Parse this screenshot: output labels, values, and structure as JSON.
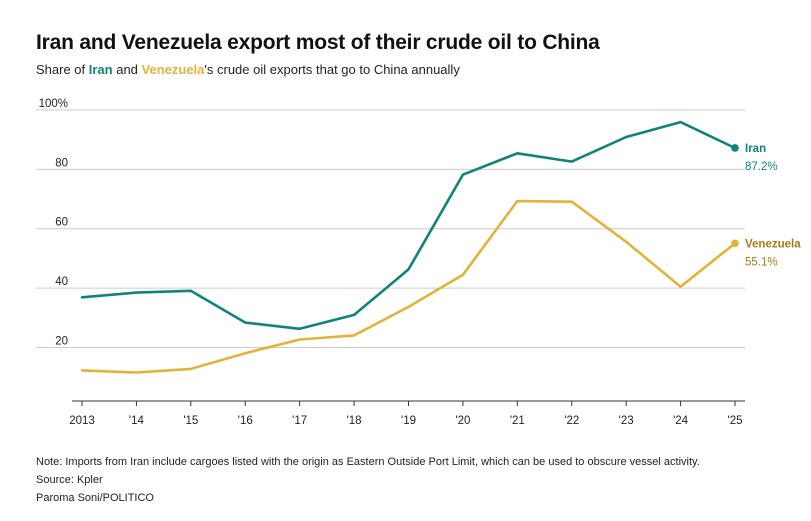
{
  "header": {
    "title": "Iran and Venezuela export most of their crude oil to China",
    "subtitle_prefix": "Share of ",
    "subtitle_iran": "Iran",
    "subtitle_and": " and ",
    "subtitle_venezuela": "Venezuela",
    "subtitle_suffix": "'s crude oil exports that go to China annually"
  },
  "footer": {
    "note": "Note: Imports from Iran include cargoes listed with the origin as Eastern Outside Port Limit, which can be used to obscure vessel activity.",
    "source": "Source: Kpler",
    "credit": "Paroma Soni/POLITICO"
  },
  "colors": {
    "iran": "#0f8478",
    "venezuela": "#e2b33a",
    "venezuela_label": "#a37d14",
    "grid": "#cccccc",
    "axis": "#333333"
  },
  "chart_data": {
    "type": "line",
    "title": "Iran and Venezuela export most of their crude oil to China",
    "subtitle": "Share of Iran and Venezuela's crude oil exports that go to China annually",
    "xlabel": "",
    "ylabel": "",
    "x": [
      2013,
      2014,
      2015,
      2016,
      2017,
      2018,
      2019,
      2020,
      2021,
      2022,
      2023,
      2024,
      2025
    ],
    "x_tick_labels": [
      "2013",
      "'14",
      "'15",
      "'16",
      "'17",
      "'18",
      "'19",
      "'20",
      "'21",
      "'22",
      "'23",
      "'24",
      "'25"
    ],
    "y_ticks": [
      20,
      40,
      60,
      80,
      100
    ],
    "y_tick_labels": [
      "20",
      "40",
      "60",
      "80",
      "100%"
    ],
    "ylim": [
      2,
      102
    ],
    "grid": true,
    "series": [
      {
        "name": "Iran",
        "color_key": "iran",
        "values": [
          36.9,
          38.5,
          39.1,
          28.4,
          26.3,
          31.0,
          46.3,
          78.2,
          85.4,
          82.6,
          90.9,
          95.9,
          87.2
        ],
        "end_label": "Iran",
        "end_value_label": "87.2%"
      },
      {
        "name": "Venezuela",
        "color_key": "venezuela",
        "values": [
          12.3,
          11.6,
          12.8,
          18.1,
          22.7,
          24.1,
          33.7,
          44.5,
          69.3,
          69.1,
          55.6,
          40.5,
          55.1
        ],
        "end_label": "Venezuela",
        "end_value_label": "55.1%"
      }
    ]
  }
}
